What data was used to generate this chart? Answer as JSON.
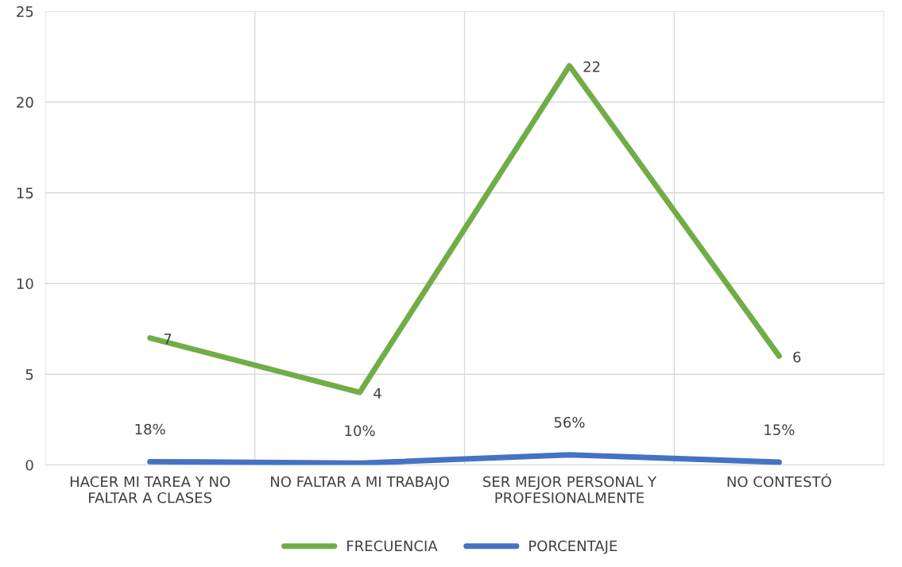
{
  "chart_data": {
    "type": "line",
    "categories": [
      "HACER MI TAREA Y NO FALTAR A CLASES",
      "NO FALTAR A MI TRABAJO",
      "SER MEJOR PERSONAL Y PROFESIONALMENTE",
      "NO CONTESTÓ"
    ],
    "series": [
      {
        "name": "FRECUENCIA",
        "color": "#70ad47",
        "values": [
          7,
          4,
          22,
          6
        ],
        "value_labels": [
          "7",
          "4",
          "22",
          "6"
        ]
      },
      {
        "name": "PORCENTAJE",
        "color": "#4472c4",
        "values": [
          0.18,
          0.1,
          0.56,
          0.15
        ],
        "value_labels": [
          "18%",
          "10%",
          "56%",
          "15%"
        ]
      }
    ],
    "ylim": [
      0,
      25
    ],
    "yticks": [
      0,
      5,
      10,
      15,
      20,
      25
    ],
    "grid": true,
    "legend": "bottom",
    "marker": "none",
    "line_style": "solid"
  }
}
